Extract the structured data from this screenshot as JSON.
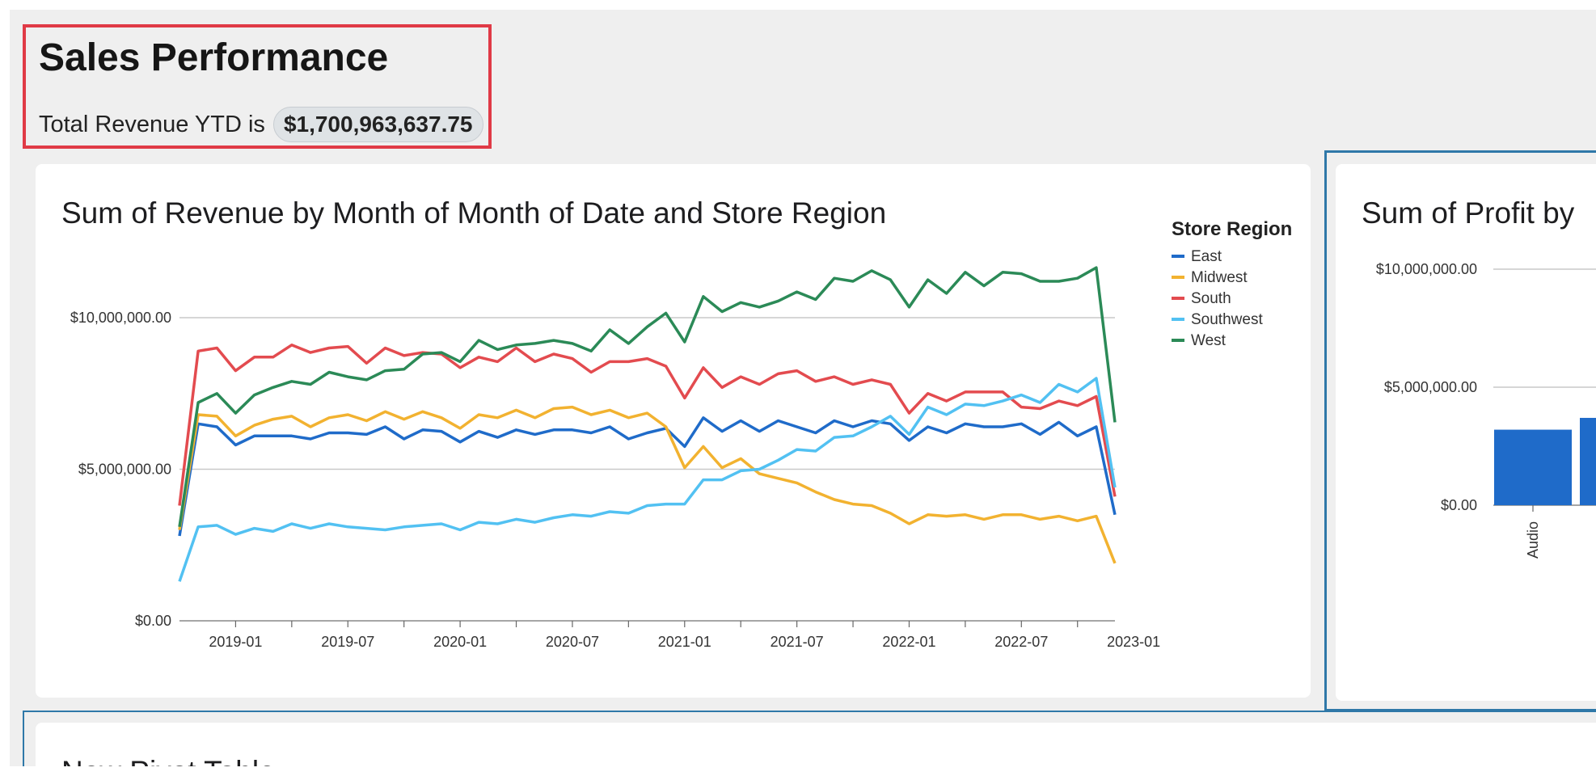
{
  "page": {
    "title": "Sales Performance",
    "revenue_label": "Total Revenue YTD is",
    "revenue_value": "$1,700,963,637.75"
  },
  "revenue_card": {
    "title": "Sum of Revenue by Month of Month of Date and Store Region"
  },
  "profit_card": {
    "title": "Sum of Profit by"
  },
  "pivot_card": {
    "title": "New Pivot Table"
  },
  "colors": {
    "East": "#1f6bc9",
    "Midwest": "#f2b230",
    "South": "#e34b4f",
    "Southwest": "#52c1f2",
    "West": "#2b8a57",
    "highlight_border": "#e03a46",
    "selected_border": "#2f78a8"
  },
  "chart_data": [
    {
      "type": "line",
      "title": "Sum of Revenue by Month of Month of Date and Store Region",
      "x_start": "2018-10",
      "x_ticks": [
        "2019-01",
        "2019-07",
        "2020-01",
        "2020-07",
        "2021-01",
        "2021-07",
        "2022-01",
        "2022-07",
        "2023-01"
      ],
      "y_ticks": [
        "$10,000,000.00",
        "$5,000,000.00",
        "$0.00"
      ],
      "ylim": [
        0,
        10000000
      ],
      "legend_title": "Store Region",
      "legend_position": "right",
      "grid": true,
      "series": [
        {
          "name": "East",
          "values": [
            2.8,
            6.5,
            6.4,
            5.8,
            6.1,
            6.1,
            6.1,
            6.0,
            6.2,
            6.2,
            6.15,
            6.4,
            6.0,
            6.3,
            6.25,
            5.9,
            6.25,
            6.05,
            6.3,
            6.15,
            6.3,
            6.3,
            6.2,
            6.4,
            6.0,
            6.2,
            6.35,
            5.75,
            6.7,
            6.25,
            6.6,
            6.25,
            6.6,
            6.4,
            6.2,
            6.6,
            6.4,
            6.6,
            6.5,
            5.95,
            6.4,
            6.2,
            6.5,
            6.4,
            6.4,
            6.5,
            6.15,
            6.55,
            6.1,
            6.4,
            3.5
          ]
        },
        {
          "name": "Midwest",
          "values": [
            3.0,
            6.8,
            6.75,
            6.1,
            6.45,
            6.65,
            6.75,
            6.4,
            6.7,
            6.8,
            6.6,
            6.9,
            6.65,
            6.9,
            6.7,
            6.35,
            6.8,
            6.7,
            6.95,
            6.7,
            7.0,
            7.05,
            6.8,
            6.95,
            6.7,
            6.85,
            6.4,
            5.05,
            5.75,
            5.05,
            5.35,
            4.85,
            4.7,
            4.55,
            4.25,
            4.0,
            3.85,
            3.8,
            3.55,
            3.2,
            3.5,
            3.45,
            3.5,
            3.35,
            3.5,
            3.5,
            3.35,
            3.45,
            3.3,
            3.45,
            1.9
          ]
        },
        {
          "name": "South",
          "values": [
            3.8,
            8.9,
            9.0,
            8.25,
            8.7,
            8.7,
            9.1,
            8.85,
            9.0,
            9.05,
            8.5,
            9.0,
            8.75,
            8.85,
            8.8,
            8.35,
            8.7,
            8.55,
            9.0,
            8.55,
            8.8,
            8.65,
            8.2,
            8.55,
            8.55,
            8.65,
            8.4,
            7.35,
            8.35,
            7.7,
            8.05,
            7.8,
            8.15,
            8.25,
            7.9,
            8.05,
            7.8,
            7.95,
            7.8,
            6.85,
            7.5,
            7.25,
            7.55,
            7.55,
            7.55,
            7.05,
            7.0,
            7.25,
            7.1,
            7.4,
            4.1
          ]
        },
        {
          "name": "Southwest",
          "values": [
            1.3,
            3.1,
            3.15,
            2.85,
            3.05,
            2.95,
            3.2,
            3.05,
            3.2,
            3.1,
            3.05,
            3.0,
            3.1,
            3.15,
            3.2,
            3.0,
            3.25,
            3.2,
            3.35,
            3.25,
            3.4,
            3.5,
            3.45,
            3.6,
            3.55,
            3.8,
            3.85,
            3.85,
            4.65,
            4.65,
            4.95,
            5.0,
            5.3,
            5.65,
            5.6,
            6.05,
            6.1,
            6.4,
            6.75,
            6.15,
            7.05,
            6.8,
            7.15,
            7.1,
            7.25,
            7.45,
            7.2,
            7.8,
            7.55,
            8.0,
            4.4
          ]
        },
        {
          "name": "West",
          "values": [
            3.1,
            7.2,
            7.5,
            6.85,
            7.45,
            7.7,
            7.9,
            7.8,
            8.2,
            8.05,
            7.95,
            8.25,
            8.3,
            8.8,
            8.85,
            8.55,
            9.25,
            8.95,
            9.1,
            9.15,
            9.25,
            9.15,
            8.9,
            9.6,
            9.15,
            9.7,
            10.15,
            9.2,
            10.7,
            10.2,
            10.5,
            10.35,
            10.55,
            10.85,
            10.6,
            11.3,
            11.2,
            11.55,
            11.25,
            10.35,
            11.25,
            10.8,
            11.5,
            11.05,
            11.5,
            11.45,
            11.2,
            11.2,
            11.3,
            11.65,
            6.55
          ]
        }
      ],
      "value_unit": "millions"
    },
    {
      "type": "bar",
      "title": "Sum of Profit by",
      "categories": [
        "Audio"
      ],
      "values": [
        3200000
      ],
      "y_ticks": [
        "$10,000,000.00",
        "$5,000,000.00",
        "$0.00"
      ],
      "ylim": [
        0,
        10000000
      ]
    }
  ]
}
